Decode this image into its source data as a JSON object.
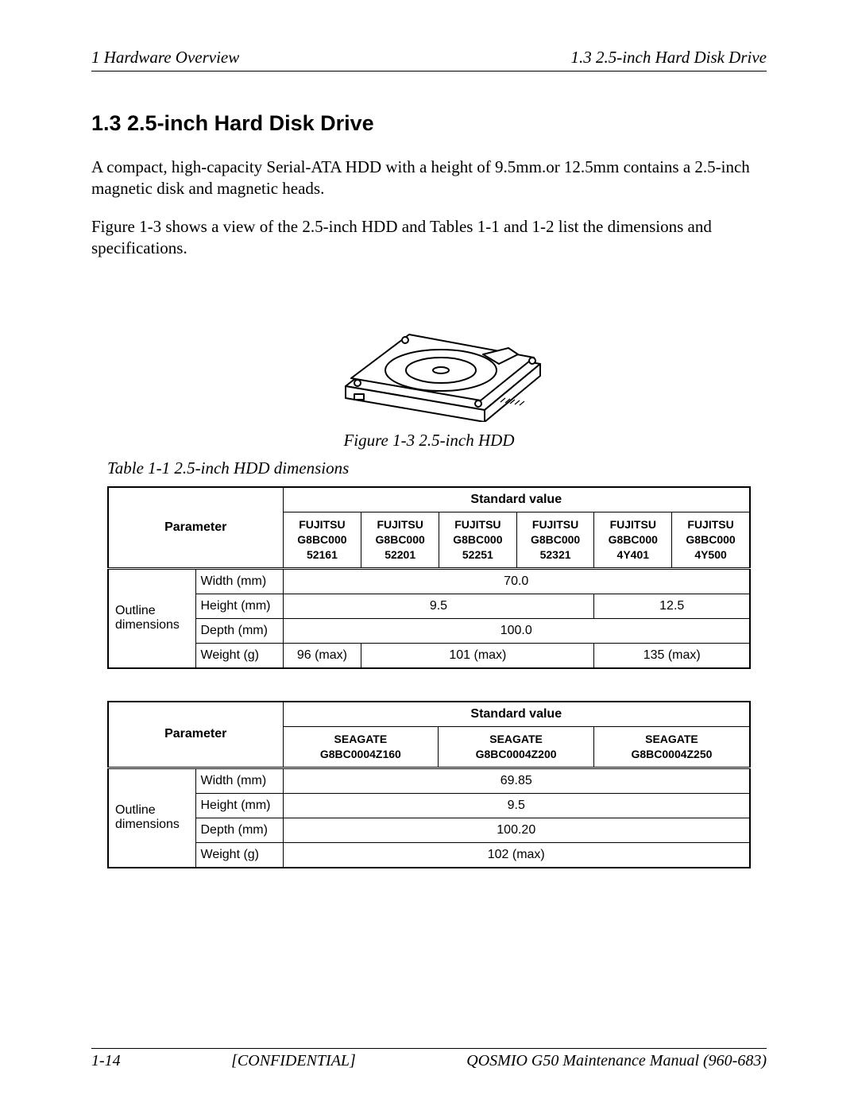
{
  "header": {
    "left": "1 Hardware Overview",
    "right": "1.3 2.5-inch Hard Disk Drive"
  },
  "section": {
    "title": "1.3   2.5-inch Hard Disk Drive",
    "para1": "A compact, high-capacity Serial-ATA HDD with a height of 9.5mm.or 12.5mm contains a 2.5-inch magnetic disk and magnetic heads.",
    "para2": "Figure 1-3 shows a view of the 2.5-inch HDD and Tables 1-1 and 1-2 list the dimensions and specifications."
  },
  "figure": {
    "caption": "Figure 1-3 2.5-inch HDD",
    "stroke": "#000000",
    "fill": "#ffffff"
  },
  "table1": {
    "caption": "Table 1-1 2.5-inch HDD dimensions",
    "param_label": "Parameter",
    "std_label": "Standard value",
    "outline_label": "Outline dimensions",
    "columns": [
      "FUJITSU G8BC000 52161",
      "FUJITSU G8BC000 52201",
      "FUJITSU G8BC000 52251",
      "FUJITSU G8BC000 52321",
      "FUJITSU G8BC000 4Y401",
      "FUJITSU G8BC000 4Y500"
    ],
    "rows": {
      "width": {
        "label": "Width (mm)",
        "span": 6,
        "value": "70.0"
      },
      "height": {
        "label": "Height (mm)",
        "v1": "9.5",
        "v1_span": 4,
        "v2": "12.5",
        "v2_span": 2
      },
      "depth": {
        "label": "Depth (mm)",
        "span": 6,
        "value": "100.0"
      },
      "weight": {
        "label": "Weight (g)",
        "v1": "96 (max)",
        "v2": "101 (max)",
        "v2_span": 3,
        "v3": "135 (max)",
        "v3_span": 2
      }
    }
  },
  "table2": {
    "param_label": "Parameter",
    "std_label": "Standard value",
    "outline_label": "Outline dimensions",
    "columns": [
      "SEAGATE G8BC0004Z160",
      "SEAGATE G8BC0004Z200",
      "SEAGATE G8BC0004Z250"
    ],
    "rows": {
      "width": {
        "label": "Width (mm)",
        "value": "69.85"
      },
      "height": {
        "label": "Height (mm)",
        "value": "9.5"
      },
      "depth": {
        "label": "Depth (mm)",
        "value": "100.20"
      },
      "weight": {
        "label": "Weight (g)",
        "value": "102 (max)"
      }
    }
  },
  "footer": {
    "left": "1-14",
    "center": "[CONFIDENTIAL]",
    "right": "QOSMIO G50 Maintenance Manual (960-683)"
  }
}
